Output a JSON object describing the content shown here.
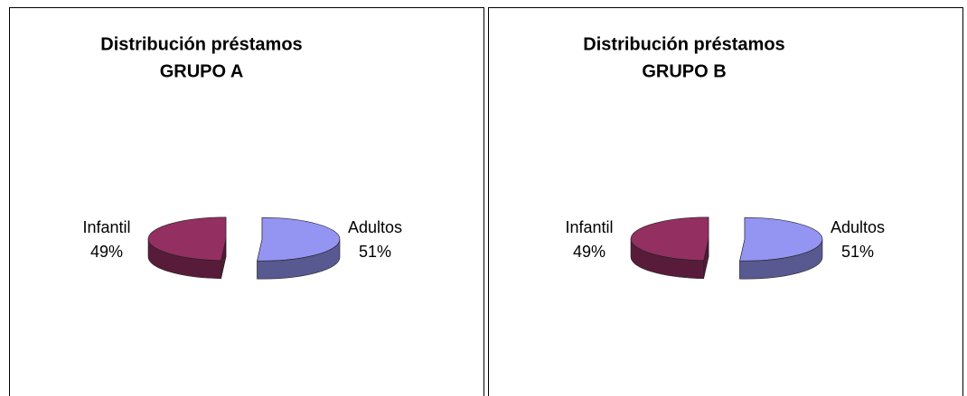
{
  "chart_data": [
    {
      "type": "pie",
      "title": [
        "Distribución préstamos",
        "GRUPO A"
      ],
      "categories": [
        "Adultos",
        "Infantil"
      ],
      "values": [
        51,
        49
      ],
      "value_labels": [
        "51%",
        "49%"
      ],
      "colors": [
        "#9494f2",
        "#932f61"
      ]
    },
    {
      "type": "pie",
      "title": [
        "Distribución préstamos",
        "GRUPO B"
      ],
      "categories": [
        "Adultos",
        "Infantil"
      ],
      "values": [
        51,
        49
      ],
      "value_labels": [
        "51%",
        "49%"
      ],
      "colors": [
        "#9494f2",
        "#932f61"
      ]
    }
  ]
}
